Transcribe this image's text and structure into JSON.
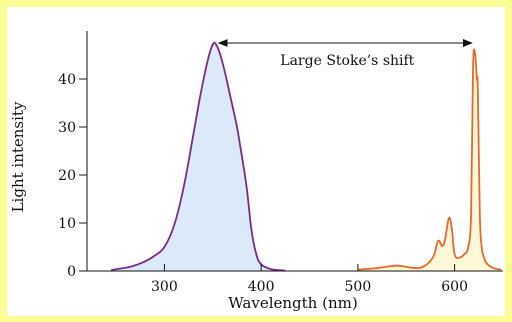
{
  "chart_data": {
    "type": "area",
    "xlabel": "Wavelength (nm)",
    "ylabel": "Light intensity",
    "xlim": [
      220,
      650
    ],
    "ylim": [
      0,
      50
    ],
    "x_ticks": [
      300,
      400,
      500,
      600
    ],
    "y_ticks": [
      0,
      10,
      20,
      30,
      40
    ],
    "annotation": {
      "text": "Large Stoke’s shift",
      "from_x": 352,
      "to_x": 622,
      "y": 47.5
    },
    "series": [
      {
        "color": "#7b2a86",
        "fill": "#dbe9f8",
        "x": [
          245,
          265,
          280,
          290,
          300,
          310,
          320,
          330,
          338,
          345,
          350,
          354,
          360,
          368,
          375,
          380,
          385,
          390,
          395,
          400,
          410,
          425
        ],
        "values": [
          0.2,
          0.9,
          2.0,
          3.2,
          5.0,
          9.5,
          17.5,
          28.5,
          37.5,
          44.0,
          47.2,
          47.0,
          43.5,
          36.5,
          30.0,
          24.0,
          17.5,
          8.5,
          3.5,
          1.4,
          0.4,
          0.1
        ]
      },
      {
        "color": "#e86a2a",
        "fill": "#fdf8d8",
        "x": [
          500,
          520,
          540,
          560,
          570,
          578,
          583,
          587,
          590,
          594,
          597,
          600,
          605,
          610,
          614,
          617,
          619,
          621,
          623,
          624,
          626,
          628,
          630,
          633,
          640,
          648
        ],
        "values": [
          0.3,
          0.6,
          1.1,
          0.6,
          1.2,
          3.0,
          6.3,
          5.2,
          6.5,
          11.0,
          9.0,
          3.5,
          2.8,
          3.5,
          5.0,
          12.0,
          42.0,
          45.5,
          40.0,
          38.0,
          12.0,
          5.0,
          3.0,
          1.6,
          0.6,
          0.3
        ]
      }
    ]
  }
}
